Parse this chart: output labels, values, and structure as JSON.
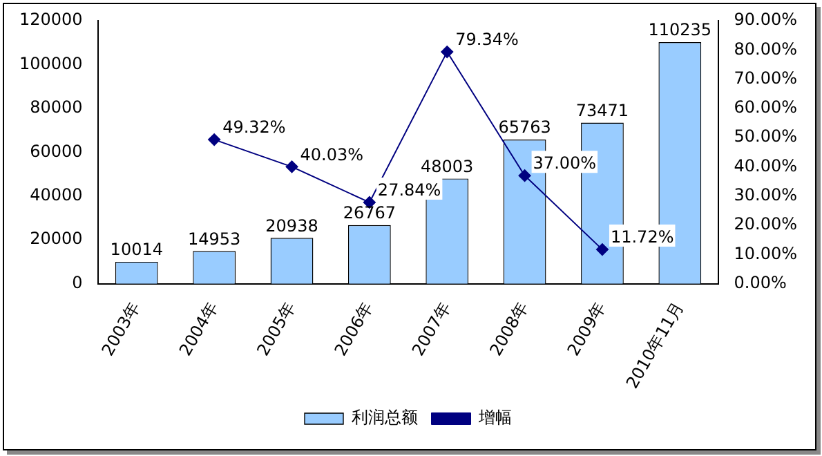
{
  "chart_data": {
    "type": "bar",
    "categories": [
      "2003年",
      "2004年",
      "2005年",
      "2006年",
      "2007年",
      "2008年",
      "2009年",
      "2010年11月"
    ],
    "series": [
      {
        "name": "利润总额",
        "color": "#99ccff",
        "values": [
          10014,
          14953,
          20938,
          26767,
          48003,
          65763,
          73471,
          110235
        ],
        "value_labels": [
          "10014",
          "14953",
          "20938",
          "26767",
          "48003",
          "65763",
          "73471",
          "110235"
        ]
      },
      {
        "name": "增幅",
        "type": "line",
        "axis": "y2",
        "color": "#000080",
        "values": [
          null,
          49.32,
          40.03,
          27.84,
          79.34,
          37.0,
          11.72,
          null
        ],
        "value_labels": [
          null,
          "49.32%",
          "40.03%",
          "27.84%",
          "79.34%",
          "37.00%",
          "11.72%",
          null
        ]
      }
    ],
    "ylim": [
      0,
      120000
    ],
    "yticks": [
      0,
      20000,
      40000,
      60000,
      80000,
      100000,
      120000
    ],
    "y2lim": [
      0,
      90
    ],
    "y2ticks": [
      {
        "value": 0,
        "label": "0.00%"
      },
      {
        "value": 10,
        "label": "10.00%"
      },
      {
        "value": 20,
        "label": "20.00%"
      },
      {
        "value": 30,
        "label": "30.00%"
      },
      {
        "value": 40,
        "label": "40.00%"
      },
      {
        "value": 50,
        "label": "50.00%"
      },
      {
        "value": 60,
        "label": "60.00%"
      },
      {
        "value": 70,
        "label": "70.00%"
      },
      {
        "value": 80,
        "label": "80.00%"
      },
      {
        "value": 90,
        "label": "90.00%"
      }
    ],
    "grid": false,
    "legend": "bottom",
    "marker": "diamond",
    "line_style": "solid"
  }
}
